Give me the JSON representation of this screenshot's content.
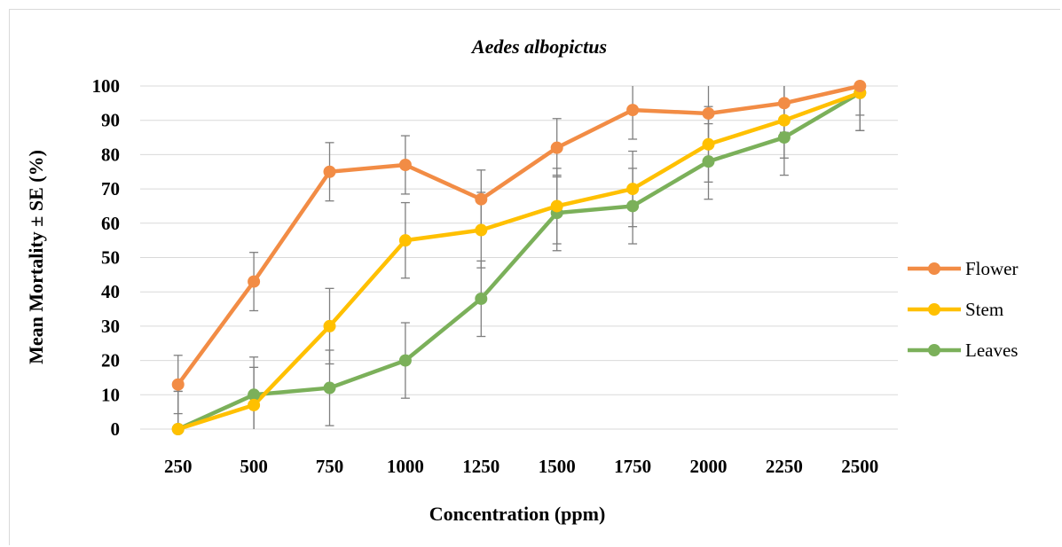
{
  "chart_data": {
    "type": "line",
    "title": "Aedes albopictus",
    "xlabel": "Concentration (ppm)",
    "ylabel": "Mean Mortality ± SE (%)",
    "categories": [
      "250",
      "500",
      "750",
      "1000",
      "1250",
      "1500",
      "1750",
      "2000",
      "2250",
      "2500"
    ],
    "ylim": [
      0,
      100
    ],
    "yticks": [
      0,
      10,
      20,
      30,
      40,
      50,
      60,
      70,
      80,
      90,
      100
    ],
    "grid": true,
    "legend_position": "right",
    "series": [
      {
        "name": "Flower",
        "color": "#F28C45",
        "values": [
          13,
          43,
          75,
          77,
          67,
          82,
          93,
          92,
          95,
          100
        ],
        "error": [
          8.5,
          8.5,
          8.5,
          8.5,
          8.5,
          8.5,
          8.5,
          8.5,
          8.5,
          8.5
        ]
      },
      {
        "name": "Stem",
        "color": "#FFC000",
        "values": [
          0,
          7,
          30,
          55,
          58,
          65,
          70,
          83,
          90,
          98
        ],
        "error": [
          11,
          11,
          11,
          11,
          11,
          11,
          11,
          11,
          11,
          11
        ]
      },
      {
        "name": "Leaves",
        "color": "#7BB05A",
        "values": [
          0,
          10,
          12,
          20,
          38,
          63,
          65,
          78,
          85,
          98
        ],
        "error": [
          11,
          11,
          11,
          11,
          11,
          11,
          11,
          11,
          11,
          11
        ]
      }
    ]
  }
}
